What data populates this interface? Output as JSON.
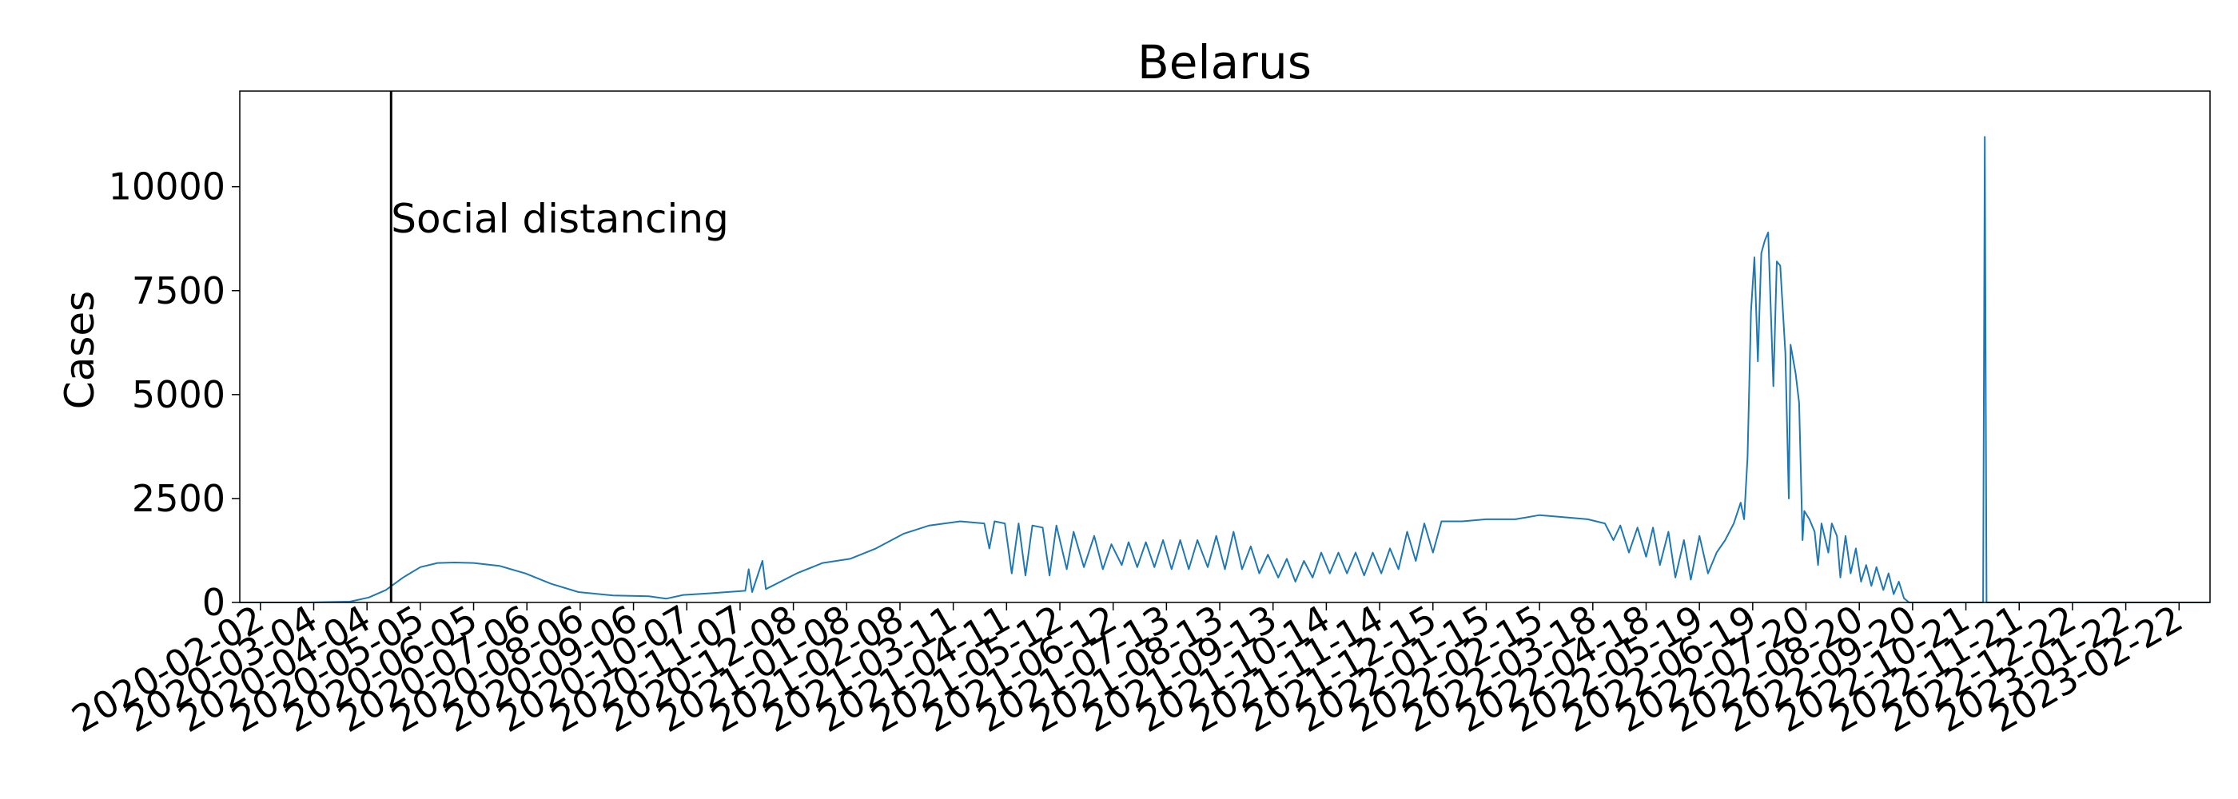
{
  "chart_data": {
    "type": "line",
    "title": "Belarus",
    "xlabel": "",
    "ylabel": "Cases",
    "ylim": [
      0,
      12300
    ],
    "yticks": [
      0,
      2500,
      5000,
      7500,
      10000
    ],
    "xlim": [
      "2020-01-21",
      "2023-03-12"
    ],
    "xtick_labels": [
      "2020-02-02",
      "2020-03-04",
      "2020-04-04",
      "2020-05-05",
      "2020-06-05",
      "2020-07-06",
      "2020-08-06",
      "2020-09-06",
      "2020-10-07",
      "2020-11-07",
      "2020-12-08",
      "2021-01-08",
      "2021-02-08",
      "2021-03-11",
      "2021-04-11",
      "2021-05-12",
      "2021-06-12",
      "2021-07-13",
      "2021-08-13",
      "2021-09-13",
      "2021-10-14",
      "2021-11-14",
      "2021-12-15",
      "2022-01-15",
      "2022-02-15",
      "2022-03-18",
      "2022-04-18",
      "2022-05-19",
      "2022-06-19",
      "2022-07-20",
      "2022-08-20",
      "2022-09-20",
      "2022-10-21",
      "2022-11-21",
      "2022-12-22",
      "2023-01-22",
      "2023-02-22"
    ],
    "grid": false,
    "line_color": "#1f77b4",
    "annotation": {
      "text": "Social distancing",
      "date": "2020-04-18"
    },
    "series": [
      {
        "points": [
          [
            "2020-01-21",
            0
          ],
          [
            "2020-03-01",
            0
          ],
          [
            "2020-03-25",
            20
          ],
          [
            "2020-04-05",
            120
          ],
          [
            "2020-04-15",
            300
          ],
          [
            "2020-04-25",
            600
          ],
          [
            "2020-05-05",
            850
          ],
          [
            "2020-05-15",
            950
          ],
          [
            "2020-05-25",
            960
          ],
          [
            "2020-06-05",
            950
          ],
          [
            "2020-06-20",
            880
          ],
          [
            "2020-07-05",
            700
          ],
          [
            "2020-07-20",
            450
          ],
          [
            "2020-08-05",
            250
          ],
          [
            "2020-08-25",
            170
          ],
          [
            "2020-09-15",
            150
          ],
          [
            "2020-09-25",
            90
          ],
          [
            "2020-10-05",
            180
          ],
          [
            "2020-10-20",
            220
          ],
          [
            "2020-11-10",
            280
          ],
          [
            "2020-11-12",
            800
          ],
          [
            "2020-11-14",
            250
          ],
          [
            "2020-11-20",
            1000
          ],
          [
            "2020-11-22",
            320
          ],
          [
            "2020-12-10",
            700
          ],
          [
            "2020-12-25",
            950
          ],
          [
            "2021-01-10",
            1050
          ],
          [
            "2021-01-25",
            1300
          ],
          [
            "2021-02-10",
            1650
          ],
          [
            "2021-02-25",
            1850
          ],
          [
            "2021-03-15",
            1950
          ],
          [
            "2021-03-29",
            1900
          ],
          [
            "2021-04-01",
            1300
          ],
          [
            "2021-04-04",
            1950
          ],
          [
            "2021-04-10",
            1900
          ],
          [
            "2021-04-14",
            700
          ],
          [
            "2021-04-18",
            1900
          ],
          [
            "2021-04-22",
            650
          ],
          [
            "2021-04-26",
            1850
          ],
          [
            "2021-05-02",
            1800
          ],
          [
            "2021-05-06",
            650
          ],
          [
            "2021-05-10",
            1850
          ],
          [
            "2021-05-16",
            800
          ],
          [
            "2021-05-20",
            1700
          ],
          [
            "2021-05-26",
            850
          ],
          [
            "2021-06-01",
            1600
          ],
          [
            "2021-06-06",
            800
          ],
          [
            "2021-06-11",
            1400
          ],
          [
            "2021-06-17",
            900
          ],
          [
            "2021-06-21",
            1450
          ],
          [
            "2021-06-26",
            850
          ],
          [
            "2021-07-01",
            1450
          ],
          [
            "2021-07-06",
            850
          ],
          [
            "2021-07-11",
            1500
          ],
          [
            "2021-07-16",
            800
          ],
          [
            "2021-07-21",
            1500
          ],
          [
            "2021-07-26",
            800
          ],
          [
            "2021-07-31",
            1500
          ],
          [
            "2021-08-06",
            850
          ],
          [
            "2021-08-11",
            1600
          ],
          [
            "2021-08-16",
            800
          ],
          [
            "2021-08-21",
            1700
          ],
          [
            "2021-08-26",
            800
          ],
          [
            "2021-08-31",
            1350
          ],
          [
            "2021-09-05",
            700
          ],
          [
            "2021-09-10",
            1150
          ],
          [
            "2021-09-16",
            600
          ],
          [
            "2021-09-21",
            1050
          ],
          [
            "2021-09-26",
            500
          ],
          [
            "2021-10-01",
            1000
          ],
          [
            "2021-10-06",
            600
          ],
          [
            "2021-10-11",
            1200
          ],
          [
            "2021-10-16",
            700
          ],
          [
            "2021-10-21",
            1200
          ],
          [
            "2021-10-26",
            700
          ],
          [
            "2021-10-31",
            1200
          ],
          [
            "2021-11-05",
            650
          ],
          [
            "2021-11-10",
            1200
          ],
          [
            "2021-11-15",
            700
          ],
          [
            "2021-11-20",
            1300
          ],
          [
            "2021-11-25",
            800
          ],
          [
            "2021-11-30",
            1700
          ],
          [
            "2021-12-05",
            1000
          ],
          [
            "2021-12-10",
            1900
          ],
          [
            "2021-12-15",
            1200
          ],
          [
            "2021-12-20",
            1950
          ],
          [
            "2022-01-01",
            1950
          ],
          [
            "2022-01-15",
            2000
          ],
          [
            "2022-02-01",
            2000
          ],
          [
            "2022-02-15",
            2100
          ],
          [
            "2022-03-01",
            2050
          ],
          [
            "2022-03-15",
            2000
          ],
          [
            "2022-03-25",
            1900
          ],
          [
            "2022-03-30",
            1500
          ],
          [
            "2022-04-03",
            1850
          ],
          [
            "2022-04-08",
            1200
          ],
          [
            "2022-04-13",
            1800
          ],
          [
            "2022-04-18",
            1100
          ],
          [
            "2022-04-22",
            1800
          ],
          [
            "2022-04-26",
            900
          ],
          [
            "2022-05-01",
            1700
          ],
          [
            "2022-05-05",
            600
          ],
          [
            "2022-05-10",
            1500
          ],
          [
            "2022-05-14",
            550
          ],
          [
            "2022-05-19",
            1600
          ],
          [
            "2022-05-24",
            700
          ],
          [
            "2022-05-29",
            1200
          ],
          [
            "2022-06-03",
            1500
          ],
          [
            "2022-06-08",
            1900
          ],
          [
            "2022-06-12",
            2400
          ],
          [
            "2022-06-14",
            2000
          ],
          [
            "2022-06-16",
            3500
          ],
          [
            "2022-06-18",
            7000
          ],
          [
            "2022-06-20",
            8300
          ],
          [
            "2022-06-22",
            5800
          ],
          [
            "2022-06-24",
            8400
          ],
          [
            "2022-06-26",
            8700
          ],
          [
            "2022-06-28",
            8900
          ],
          [
            "2022-07-01",
            5200
          ],
          [
            "2022-07-03",
            8200
          ],
          [
            "2022-07-05",
            8100
          ],
          [
            "2022-07-08",
            6000
          ],
          [
            "2022-07-10",
            2500
          ],
          [
            "2022-07-11",
            6200
          ],
          [
            "2022-07-14",
            5500
          ],
          [
            "2022-07-16",
            4800
          ],
          [
            "2022-07-18",
            1500
          ],
          [
            "2022-07-19",
            2200
          ],
          [
            "2022-07-22",
            2000
          ],
          [
            "2022-07-25",
            1700
          ],
          [
            "2022-07-27",
            900
          ],
          [
            "2022-07-29",
            1900
          ],
          [
            "2022-08-02",
            1200
          ],
          [
            "2022-08-04",
            1900
          ],
          [
            "2022-08-07",
            1600
          ],
          [
            "2022-08-09",
            600
          ],
          [
            "2022-08-12",
            1600
          ],
          [
            "2022-08-15",
            700
          ],
          [
            "2022-08-18",
            1300
          ],
          [
            "2022-08-21",
            500
          ],
          [
            "2022-08-24",
            900
          ],
          [
            "2022-08-27",
            400
          ],
          [
            "2022-08-30",
            850
          ],
          [
            "2022-09-03",
            300
          ],
          [
            "2022-09-06",
            700
          ],
          [
            "2022-09-09",
            200
          ],
          [
            "2022-09-12",
            500
          ],
          [
            "2022-09-15",
            100
          ],
          [
            "2022-09-18",
            0
          ],
          [
            "2022-10-31",
            0
          ],
          [
            "2022-11-01",
            11200
          ],
          [
            "2022-11-02",
            0
          ],
          [
            "2023-03-12",
            0
          ]
        ]
      }
    ]
  }
}
